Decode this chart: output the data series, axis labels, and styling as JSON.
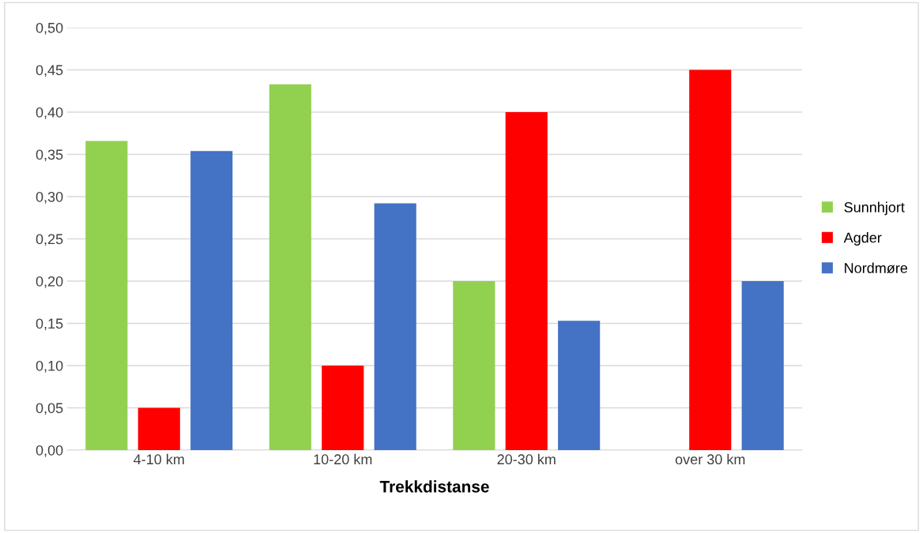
{
  "chart_data": {
    "type": "bar",
    "xlabel": "Trekkdistanse",
    "categories": [
      "4-10 km",
      "10-20 km",
      "20-30 km",
      "over 30 km"
    ],
    "series": [
      {
        "name": "Sunnhjort",
        "color": "#92d050",
        "values": [
          0.366,
          0.433,
          0.2,
          0
        ]
      },
      {
        "name": "Agder",
        "color": "#ff0000",
        "values": [
          0.05,
          0.1,
          0.4,
          0.45
        ]
      },
      {
        "name": "Nordmøre",
        "color": "#4472c4",
        "values": [
          0.354,
          0.292,
          0.153,
          0.2
        ]
      }
    ],
    "ylim": [
      0,
      0.5
    ],
    "yticks": [
      {
        "value": 0,
        "label": "0,00"
      },
      {
        "value": 0.05,
        "label": "0,05"
      },
      {
        "value": 0.1,
        "label": "0,10"
      },
      {
        "value": 0.15,
        "label": "0,15"
      },
      {
        "value": 0.2,
        "label": "0,20"
      },
      {
        "value": 0.25,
        "label": "0,25"
      },
      {
        "value": 0.3,
        "label": "0,30"
      },
      {
        "value": 0.35,
        "label": "0,35"
      },
      {
        "value": 0.4,
        "label": "0,40"
      },
      {
        "value": 0.45,
        "label": "0,45"
      },
      {
        "value": 0.5,
        "label": "0,50"
      }
    ],
    "grid": "y",
    "legend": "right"
  }
}
